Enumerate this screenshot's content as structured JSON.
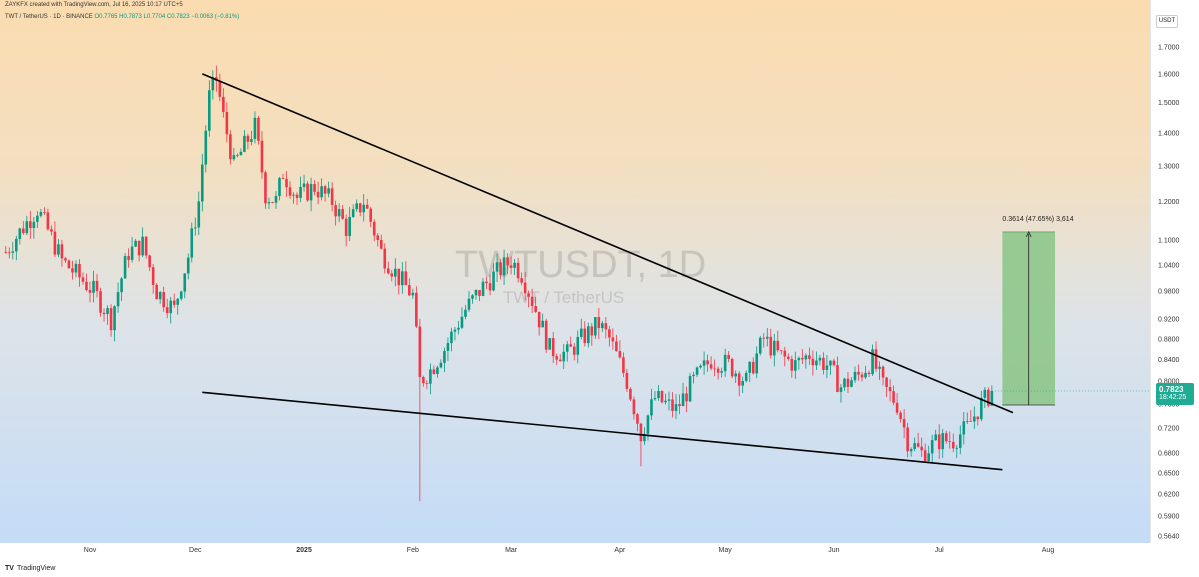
{
  "header": {
    "line1": "ZAYKFX created with TradingView.com, Jul 16, 2025 10:17 UTC+5",
    "line2_prefix": "TWT / TetherUS · 1D · BINANCE ",
    "line2_values": "O0.7765 H0.7873 L0.7704 C0.7823 −0.0063 (−0.81%)"
  },
  "currency": "USDT",
  "watermark": {
    "title": "TWTUSDT, 1D",
    "subtitle": "TWT / TetherUS"
  },
  "price_tag": {
    "price": "0.7823",
    "countdown": "18:42:25"
  },
  "measure_label": "0.3614 (47.65%) 3,614",
  "footer": {
    "logo": "TV",
    "brand": "TradingView"
  },
  "colors": {
    "up": "#089981",
    "down": "#f23645",
    "measure_fill": "#8ec78b",
    "trendline": "#000000"
  },
  "chart_data": {
    "type": "candlestick",
    "symbol": "TWTUSDT",
    "interval": "1D",
    "exchange": "BINANCE",
    "scale": "log",
    "yticks": [
      "1.7000",
      "1.6000",
      "1.5000",
      "1.4000",
      "1.3000",
      "1.2000",
      "1.1000",
      "1.0400",
      "0.9800",
      "0.9200",
      "0.8800",
      "0.8400",
      "0.8000",
      "0.7600",
      "0.7200",
      "0.6800",
      "0.6500",
      "0.6200",
      "0.5900",
      "0.5640"
    ],
    "xticks": [
      {
        "label": "Nov",
        "date": "2024-11-01"
      },
      {
        "label": "Dec",
        "date": "2024-12-01"
      },
      {
        "label": "2025",
        "date": "2025-01-01",
        "bold": true
      },
      {
        "label": "Feb",
        "date": "2025-02-01"
      },
      {
        "label": "Mar",
        "date": "2025-03-01"
      },
      {
        "label": "Apr",
        "date": "2025-04-01"
      },
      {
        "label": "May",
        "date": "2025-05-01"
      },
      {
        "label": "Jun",
        "date": "2025-06-01"
      },
      {
        "label": "Jul",
        "date": "2025-07-01"
      },
      {
        "label": "Aug",
        "date": "2025-08-01"
      }
    ],
    "last_close": 0.7823,
    "closes": [
      {
        "date": "2024-10-08",
        "close": 1.07
      },
      {
        "date": "2024-10-12",
        "close": 1.12
      },
      {
        "date": "2024-10-17",
        "close": 1.18
      },
      {
        "date": "2024-10-24",
        "close": 1.05
      },
      {
        "date": "2024-11-02",
        "close": 0.98
      },
      {
        "date": "2024-11-07",
        "close": 0.92
      },
      {
        "date": "2024-11-12",
        "close": 1.07
      },
      {
        "date": "2024-11-16",
        "close": 1.09
      },
      {
        "date": "2024-11-20",
        "close": 0.98
      },
      {
        "date": "2024-11-25",
        "close": 0.94
      },
      {
        "date": "2024-11-29",
        "close": 1.06
      },
      {
        "date": "2024-12-02",
        "close": 1.2
      },
      {
        "date": "2024-12-05",
        "close": 1.52
      },
      {
        "date": "2024-12-07",
        "close": 1.58
      },
      {
        "date": "2024-12-09",
        "close": 1.45
      },
      {
        "date": "2024-12-12",
        "close": 1.3
      },
      {
        "date": "2024-12-15",
        "close": 1.36
      },
      {
        "date": "2024-12-18",
        "close": 1.42
      },
      {
        "date": "2024-12-21",
        "close": 1.22
      },
      {
        "date": "2024-12-24",
        "close": 1.2
      },
      {
        "date": "2024-12-26",
        "close": 1.28
      },
      {
        "date": "2024-12-30",
        "close": 1.21
      },
      {
        "date": "2025-01-04",
        "close": 1.24
      },
      {
        "date": "2025-01-09",
        "close": 1.2
      },
      {
        "date": "2025-01-13",
        "close": 1.13
      },
      {
        "date": "2025-01-18",
        "close": 1.2
      },
      {
        "date": "2025-01-23",
        "close": 1.07
      },
      {
        "date": "2025-01-28",
        "close": 1.01
      },
      {
        "date": "2025-02-01",
        "close": 0.97
      },
      {
        "date": "2025-02-03",
        "close": 0.8
      },
      {
        "date": "2025-02-06",
        "close": 0.82
      },
      {
        "date": "2025-02-10",
        "close": 0.86
      },
      {
        "date": "2025-02-16",
        "close": 0.94
      },
      {
        "date": "2025-02-21",
        "close": 0.99
      },
      {
        "date": "2025-02-26",
        "close": 1.03
      },
      {
        "date": "2025-03-01",
        "close": 1.05
      },
      {
        "date": "2025-03-04",
        "close": 1.02
      },
      {
        "date": "2025-03-08",
        "close": 0.94
      },
      {
        "date": "2025-03-12",
        "close": 0.86
      },
      {
        "date": "2025-03-17",
        "close": 0.85
      },
      {
        "date": "2025-03-21",
        "close": 0.88
      },
      {
        "date": "2025-03-26",
        "close": 0.91
      },
      {
        "date": "2025-03-29",
        "close": 0.88
      },
      {
        "date": "2025-04-03",
        "close": 0.8
      },
      {
        "date": "2025-04-07",
        "close": 0.71
      },
      {
        "date": "2025-04-11",
        "close": 0.77
      },
      {
        "date": "2025-04-17",
        "close": 0.75
      },
      {
        "date": "2025-04-22",
        "close": 0.8
      },
      {
        "date": "2025-04-27",
        "close": 0.84
      },
      {
        "date": "2025-05-02",
        "close": 0.83
      },
      {
        "date": "2025-05-07",
        "close": 0.8
      },
      {
        "date": "2025-05-12",
        "close": 0.88
      },
      {
        "date": "2025-05-16",
        "close": 0.85
      },
      {
        "date": "2025-05-21",
        "close": 0.83
      },
      {
        "date": "2025-05-25",
        "close": 0.85
      },
      {
        "date": "2025-05-30",
        "close": 0.83
      },
      {
        "date": "2025-06-03",
        "close": 0.79
      },
      {
        "date": "2025-06-08",
        "close": 0.81
      },
      {
        "date": "2025-06-12",
        "close": 0.84
      },
      {
        "date": "2025-06-15",
        "close": 0.79
      },
      {
        "date": "2025-06-19",
        "close": 0.76
      },
      {
        "date": "2025-06-22",
        "close": 0.7
      },
      {
        "date": "2025-06-26",
        "close": 0.68
      },
      {
        "date": "2025-07-01",
        "close": 0.7
      },
      {
        "date": "2025-07-05",
        "close": 0.7
      },
      {
        "date": "2025-07-09",
        "close": 0.72
      },
      {
        "date": "2025-07-13",
        "close": 0.76
      },
      {
        "date": "2025-07-16",
        "close": 0.78
      }
    ],
    "wicks": [
      {
        "date": "2024-12-07",
        "high": 1.63
      },
      {
        "date": "2025-02-03",
        "low": 0.61
      },
      {
        "date": "2025-04-07",
        "low": 0.66
      }
    ],
    "trendlines": [
      {
        "name": "resistance",
        "from": {
          "date": "2024-12-03",
          "price": 1.6
        },
        "to": {
          "date": "2025-07-22",
          "price": 0.745
        }
      },
      {
        "name": "support",
        "from": {
          "date": "2024-12-03",
          "price": 0.78
        },
        "to": {
          "date": "2025-07-19",
          "price": 0.655
        }
      }
    ],
    "measure": {
      "from": {
        "date": "2025-07-19",
        "price": 0.758
      },
      "to": {
        "date": "2025-08-03",
        "price": 1.12
      }
    }
  }
}
